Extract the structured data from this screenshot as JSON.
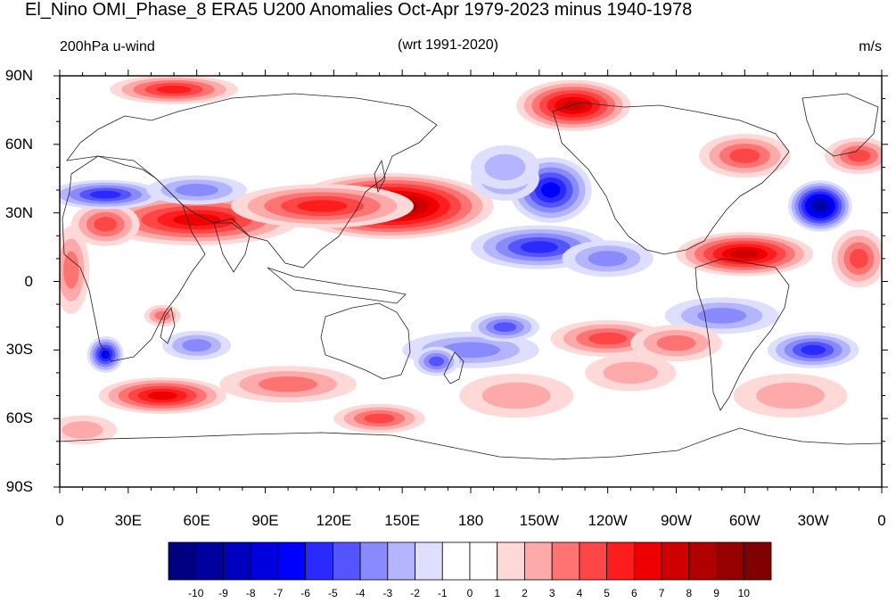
{
  "title": "El_Nino OMI_Phase_8 ERA5 U200 Anomalies Oct-Apr 1979-2023 minus 1940-1978",
  "left_string": "200hPa u-wind",
  "center_string": "(wrt 1991-2020)",
  "right_string": "m/s",
  "axes": {
    "lat_ticks": [
      "90N",
      "60N",
      "30N",
      "0",
      "30S",
      "60S",
      "90S"
    ],
    "lon_ticks": [
      "0",
      "30E",
      "60E",
      "90E",
      "120E",
      "150E",
      "180",
      "150W",
      "120W",
      "90W",
      "60W",
      "30W",
      "0"
    ]
  },
  "colorbar": {
    "labels": [
      "-10",
      "-9",
      "-8",
      "-7",
      "-6",
      "-5",
      "-4",
      "-3",
      "-2",
      "-1",
      "0",
      "1",
      "2",
      "3",
      "4",
      "5",
      "6",
      "7",
      "8",
      "9",
      "10"
    ],
    "colors": [
      "#000080",
      "#00009f",
      "#0000bf",
      "#0000df",
      "#0000ff",
      "#2a2aff",
      "#5555ff",
      "#8a8aff",
      "#b4b4ff",
      "#dedeff",
      "#ffffff",
      "#ffffff",
      "#ffd8d8",
      "#ffaaaa",
      "#ff7373",
      "#ff4646",
      "#ff1c1c",
      "#ee0000",
      "#d00000",
      "#b00000",
      "#960000",
      "#800000"
    ]
  },
  "map_data": {
    "type": "contour-map",
    "variable": "200hPa u-wind anomaly",
    "units": "m/s",
    "features": [
      {
        "lon": 145,
        "lat": 33,
        "value": 9,
        "note": "strong positive jet anomaly N Pacific"
      },
      {
        "lon": 50,
        "lat": 27,
        "value": 6,
        "note": "positive band N Africa-Asia"
      },
      {
        "lon": 215,
        "lat": 40,
        "value": -6,
        "note": "negative anomaly NE Pacific"
      },
      {
        "lon": 210,
        "lat": 15,
        "value": -5,
        "note": "negative band subtropical Pacific"
      },
      {
        "lon": 333,
        "lat": 33,
        "value": -9,
        "note": "strong negative N Atlantic"
      },
      {
        "lon": 300,
        "lat": 12,
        "value": 7,
        "note": "positive anomaly Caribbean-Atlantic"
      },
      {
        "lon": 225,
        "lat": 77,
        "value": 7,
        "note": "positive Arctic anomaly"
      },
      {
        "lon": 45,
        "lat": -50,
        "value": 6,
        "note": "positive S Indian Ocean"
      },
      {
        "lon": 15,
        "lat": 38,
        "value": -5,
        "note": "negative Mediterranean"
      }
    ]
  }
}
